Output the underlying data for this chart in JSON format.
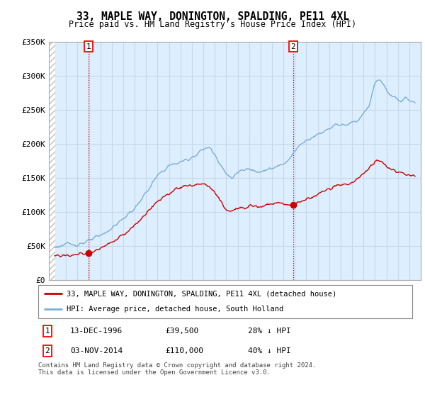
{
  "title": "33, MAPLE WAY, DONINGTON, SPALDING, PE11 4XL",
  "subtitle": "Price paid vs. HM Land Registry's House Price Index (HPI)",
  "ylim": [
    0,
    350000
  ],
  "yticks": [
    0,
    50000,
    100000,
    150000,
    200000,
    250000,
    300000,
    350000
  ],
  "ytick_labels": [
    "£0",
    "£50K",
    "£100K",
    "£150K",
    "£200K",
    "£250K",
    "£300K",
    "£350K"
  ],
  "xlim_start": 1993.5,
  "xlim_end": 2026.0,
  "sale1_year": 1996.95,
  "sale1_price": 39500,
  "sale2_year": 2014.84,
  "sale2_price": 110000,
  "legend_line1": "33, MAPLE WAY, DONINGTON, SPALDING, PE11 4XL (detached house)",
  "legend_line2": "HPI: Average price, detached house, South Holland",
  "table_row1": [
    "1",
    "13-DEC-1996",
    "£39,500",
    "28% ↓ HPI"
  ],
  "table_row2": [
    "2",
    "03-NOV-2014",
    "£110,000",
    "40% ↓ HPI"
  ],
  "footnote": "Contains HM Land Registry data © Crown copyright and database right 2024.\nThis data is licensed under the Open Government Licence v3.0.",
  "line_red": "#cc0000",
  "line_blue": "#7aaed6",
  "fill_blue": "#ddeeff",
  "grid_color": "#c8d8e8",
  "hatch_color": "#c0c0c0"
}
